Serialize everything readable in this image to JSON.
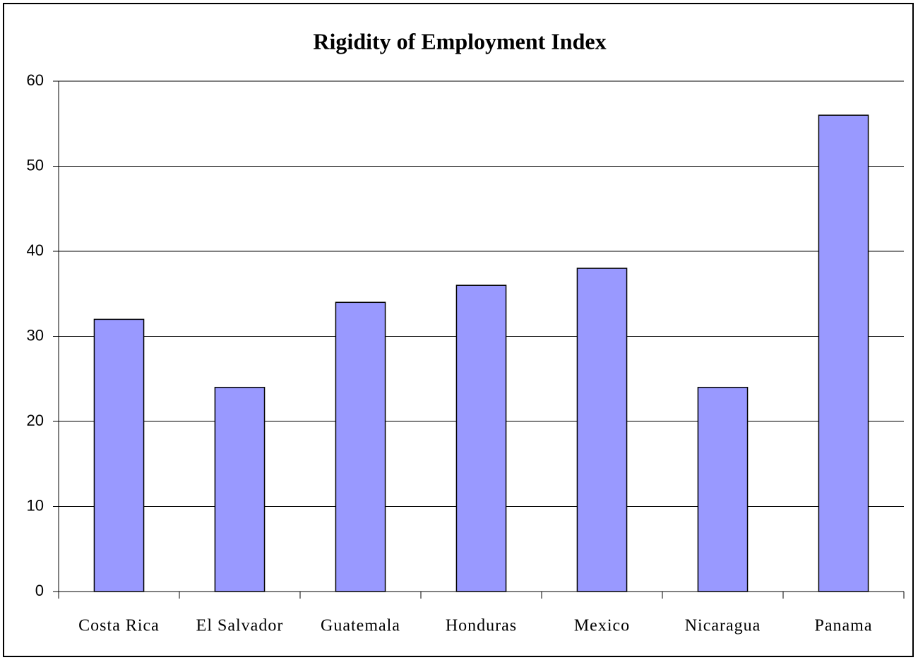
{
  "chart_data": {
    "type": "bar",
    "title": "Rigidity of Employment Index",
    "categories": [
      "Costa Rica",
      "El Salvador",
      "Guatemala",
      "Honduras",
      "Mexico",
      "Nicaragua",
      "Panama"
    ],
    "values": [
      32,
      24,
      34,
      36,
      38,
      24,
      56
    ],
    "color": "#9999ff",
    "ylim": [
      0,
      60
    ],
    "yticks": [
      0,
      10,
      20,
      30,
      40,
      50,
      60
    ],
    "grid": true
  }
}
